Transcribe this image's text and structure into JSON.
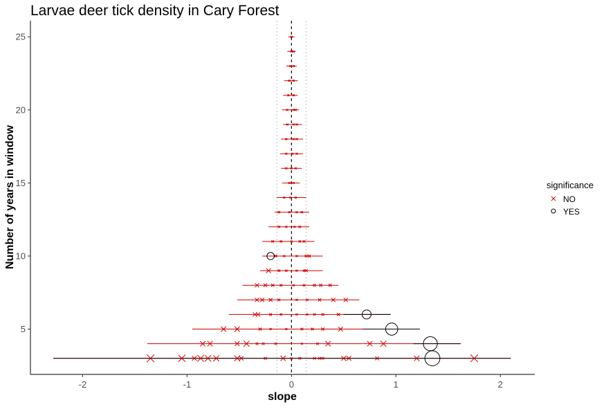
{
  "chart_data": {
    "type": "scatter",
    "title": "Larvae deer tick density in Cary Forest",
    "xlabel": "slope",
    "ylabel": "Number of years in window",
    "xlim": [
      -2.5,
      2.33
    ],
    "ylim": [
      1.9,
      26.1
    ],
    "xticks": [
      -2,
      -1,
      0,
      1,
      2
    ],
    "yticks": [
      5,
      10,
      15,
      20,
      25
    ],
    "reference_lines": {
      "zero": 0,
      "band": [
        -0.14,
        0.14
      ]
    },
    "legend": {
      "title": "significance",
      "position": "right",
      "entries": [
        "NO",
        "YES"
      ]
    },
    "colors": {
      "NO": "#cc0000",
      "YES": "#000000"
    },
    "points": [
      {
        "n": 3,
        "slope": -1.35,
        "lo": -2.28,
        "hi": 2.1,
        "r2": 0.55,
        "sig": "NO"
      },
      {
        "n": 3,
        "slope": -1.05,
        "lo": -2.28,
        "hi": 2.1,
        "r2": 0.5,
        "sig": "NO"
      },
      {
        "n": 3,
        "slope": -0.93,
        "lo": -2.28,
        "hi": 2.1,
        "r2": 0.3,
        "sig": "NO"
      },
      {
        "n": 3,
        "slope": -0.87,
        "lo": -2.28,
        "hi": 2.1,
        "r2": 0.45,
        "sig": "NO"
      },
      {
        "n": 3,
        "slope": -0.8,
        "lo": -2.28,
        "hi": 2.1,
        "r2": 0.45,
        "sig": "NO"
      },
      {
        "n": 3,
        "slope": -0.72,
        "lo": -2.28,
        "hi": 2.1,
        "r2": 0.4,
        "sig": "NO"
      },
      {
        "n": 3,
        "slope": -0.52,
        "lo": -2.28,
        "hi": 2.1,
        "r2": 0.4,
        "sig": "NO"
      },
      {
        "n": 3,
        "slope": -0.48,
        "lo": -2.28,
        "hi": 2.1,
        "r2": 0.25,
        "sig": "NO"
      },
      {
        "n": 3,
        "slope": -0.25,
        "lo": -2.28,
        "hi": 2.1,
        "r2": 0.12,
        "sig": "NO"
      },
      {
        "n": 3,
        "slope": -0.08,
        "lo": -2.28,
        "hi": 2.1,
        "r2": 0.35,
        "sig": "NO"
      },
      {
        "n": 3,
        "slope": 0.0,
        "lo": -2.28,
        "hi": 2.1,
        "r2": 0.05,
        "sig": "NO"
      },
      {
        "n": 3,
        "slope": 0.08,
        "lo": -2.28,
        "hi": 2.1,
        "r2": 0.1,
        "sig": "NO"
      },
      {
        "n": 3,
        "slope": 0.22,
        "lo": -2.28,
        "hi": 2.1,
        "r2": 0.1,
        "sig": "NO"
      },
      {
        "n": 3,
        "slope": 0.27,
        "lo": -2.28,
        "hi": 2.1,
        "r2": 0.1,
        "sig": "NO"
      },
      {
        "n": 3,
        "slope": 0.3,
        "lo": -2.28,
        "hi": 2.1,
        "r2": 0.1,
        "sig": "NO"
      },
      {
        "n": 3,
        "slope": 0.5,
        "lo": -2.28,
        "hi": 2.1,
        "r2": 0.3,
        "sig": "NO"
      },
      {
        "n": 3,
        "slope": 0.55,
        "lo": -2.28,
        "hi": 2.1,
        "r2": 0.3,
        "sig": "NO"
      },
      {
        "n": 3,
        "slope": 0.82,
        "lo": -2.28,
        "hi": 2.1,
        "r2": 0.2,
        "sig": "NO"
      },
      {
        "n": 3,
        "slope": 1.2,
        "lo": -2.28,
        "hi": 2.1,
        "r2": 0.35,
        "sig": "NO"
      },
      {
        "n": 3,
        "slope": 1.35,
        "lo": -2.28,
        "hi": 2.1,
        "r2": 0.92,
        "sig": "YES"
      },
      {
        "n": 3,
        "slope": 1.75,
        "lo": -2.28,
        "hi": 2.1,
        "r2": 0.55,
        "sig": "NO"
      },
      {
        "n": 4,
        "slope": -0.85,
        "lo": -1.38,
        "hi": 1.62,
        "r2": 0.35,
        "sig": "NO"
      },
      {
        "n": 4,
        "slope": -0.78,
        "lo": -1.38,
        "hi": 1.62,
        "r2": 0.35,
        "sig": "NO"
      },
      {
        "n": 4,
        "slope": -0.52,
        "lo": -1.38,
        "hi": 1.62,
        "r2": 0.3,
        "sig": "NO"
      },
      {
        "n": 4,
        "slope": -0.43,
        "lo": -1.38,
        "hi": 1.62,
        "r2": 0.4,
        "sig": "NO"
      },
      {
        "n": 4,
        "slope": -0.33,
        "lo": -1.38,
        "hi": 1.62,
        "r2": 0.1,
        "sig": "NO"
      },
      {
        "n": 4,
        "slope": -0.27,
        "lo": -1.38,
        "hi": 1.62,
        "r2": 0.1,
        "sig": "NO"
      },
      {
        "n": 4,
        "slope": -0.15,
        "lo": -1.38,
        "hi": 1.62,
        "r2": 0.08,
        "sig": "NO"
      },
      {
        "n": 4,
        "slope": 0.1,
        "lo": -1.38,
        "hi": 1.62,
        "r2": 0.05,
        "sig": "NO"
      },
      {
        "n": 4,
        "slope": 0.25,
        "lo": -1.38,
        "hi": 1.62,
        "r2": 0.1,
        "sig": "NO"
      },
      {
        "n": 4,
        "slope": 0.35,
        "lo": -1.38,
        "hi": 1.62,
        "r2": 0.35,
        "sig": "NO"
      },
      {
        "n": 4,
        "slope": 0.75,
        "lo": -1.38,
        "hi": 1.62,
        "r2": 0.35,
        "sig": "NO"
      },
      {
        "n": 4,
        "slope": 0.88,
        "lo": -1.38,
        "hi": 1.62,
        "r2": 0.4,
        "sig": "NO"
      },
      {
        "n": 4,
        "slope": 1.33,
        "lo": 1.17,
        "hi": 1.62,
        "r2": 0.85,
        "sig": "YES"
      },
      {
        "n": 5,
        "slope": -0.65,
        "lo": -0.95,
        "hi": 1.23,
        "r2": 0.35,
        "sig": "NO"
      },
      {
        "n": 5,
        "slope": -0.52,
        "lo": -0.95,
        "hi": 1.23,
        "r2": 0.35,
        "sig": "NO"
      },
      {
        "n": 5,
        "slope": -0.3,
        "lo": -0.95,
        "hi": 1.23,
        "r2": 0.15,
        "sig": "NO"
      },
      {
        "n": 5,
        "slope": -0.2,
        "lo": -0.95,
        "hi": 1.23,
        "r2": 0.05,
        "sig": "NO"
      },
      {
        "n": 5,
        "slope": -0.05,
        "lo": -0.95,
        "hi": 1.23,
        "r2": 0.05,
        "sig": "NO"
      },
      {
        "n": 5,
        "slope": 0.1,
        "lo": -0.95,
        "hi": 1.23,
        "r2": 0.1,
        "sig": "NO"
      },
      {
        "n": 5,
        "slope": 0.2,
        "lo": -0.95,
        "hi": 1.23,
        "r2": 0.1,
        "sig": "NO"
      },
      {
        "n": 5,
        "slope": 0.3,
        "lo": -0.95,
        "hi": 1.23,
        "r2": 0.15,
        "sig": "NO"
      },
      {
        "n": 5,
        "slope": 0.47,
        "lo": -0.95,
        "hi": 1.23,
        "r2": 0.3,
        "sig": "NO"
      },
      {
        "n": 5,
        "slope": 0.96,
        "lo": 0.68,
        "hi": 1.23,
        "r2": 0.72,
        "sig": "YES"
      },
      {
        "n": 6,
        "slope": -0.35,
        "lo": -0.6,
        "hi": 0.95,
        "r2": 0.25,
        "sig": "NO"
      },
      {
        "n": 6,
        "slope": -0.32,
        "lo": -0.6,
        "hi": 0.95,
        "r2": 0.25,
        "sig": "NO"
      },
      {
        "n": 6,
        "slope": -0.2,
        "lo": -0.6,
        "hi": 0.95,
        "r2": 0.1,
        "sig": "NO"
      },
      {
        "n": 6,
        "slope": -0.1,
        "lo": -0.6,
        "hi": 0.95,
        "r2": 0.08,
        "sig": "NO"
      },
      {
        "n": 6,
        "slope": 0.05,
        "lo": -0.6,
        "hi": 0.95,
        "r2": 0.05,
        "sig": "NO"
      },
      {
        "n": 6,
        "slope": 0.15,
        "lo": -0.6,
        "hi": 0.95,
        "r2": 0.05,
        "sig": "NO"
      },
      {
        "n": 6,
        "slope": 0.22,
        "lo": -0.6,
        "hi": 0.95,
        "r2": 0.08,
        "sig": "NO"
      },
      {
        "n": 6,
        "slope": 0.3,
        "lo": -0.6,
        "hi": 0.95,
        "r2": 0.1,
        "sig": "NO"
      },
      {
        "n": 6,
        "slope": 0.45,
        "lo": -0.6,
        "hi": 0.95,
        "r2": 0.15,
        "sig": "NO"
      },
      {
        "n": 6,
        "slope": 0.72,
        "lo": 0.5,
        "hi": 0.95,
        "r2": 0.5,
        "sig": "YES"
      },
      {
        "n": 7,
        "slope": -0.33,
        "lo": -0.52,
        "hi": 0.65,
        "r2": 0.25,
        "sig": "NO"
      },
      {
        "n": 7,
        "slope": -0.28,
        "lo": -0.52,
        "hi": 0.65,
        "r2": 0.25,
        "sig": "NO"
      },
      {
        "n": 7,
        "slope": -0.2,
        "lo": -0.52,
        "hi": 0.65,
        "r2": 0.2,
        "sig": "NO"
      },
      {
        "n": 7,
        "slope": -0.12,
        "lo": -0.52,
        "hi": 0.65,
        "r2": 0.1,
        "sig": "NO"
      },
      {
        "n": 7,
        "slope": 0.05,
        "lo": -0.52,
        "hi": 0.65,
        "r2": 0.05,
        "sig": "NO"
      },
      {
        "n": 7,
        "slope": 0.15,
        "lo": -0.52,
        "hi": 0.65,
        "r2": 0.08,
        "sig": "NO"
      },
      {
        "n": 7,
        "slope": 0.27,
        "lo": -0.52,
        "hi": 0.65,
        "r2": 0.15,
        "sig": "NO"
      },
      {
        "n": 7,
        "slope": 0.4,
        "lo": -0.52,
        "hi": 0.65,
        "r2": 0.25,
        "sig": "NO"
      },
      {
        "n": 7,
        "slope": 0.52,
        "lo": -0.52,
        "hi": 0.65,
        "r2": 0.25,
        "sig": "NO"
      },
      {
        "n": 8,
        "slope": -0.33,
        "lo": -0.47,
        "hi": 0.45,
        "r2": 0.25,
        "sig": "NO"
      },
      {
        "n": 8,
        "slope": -0.25,
        "lo": -0.47,
        "hi": 0.45,
        "r2": 0.2,
        "sig": "NO"
      },
      {
        "n": 8,
        "slope": -0.18,
        "lo": -0.47,
        "hi": 0.45,
        "r2": 0.15,
        "sig": "NO"
      },
      {
        "n": 8,
        "slope": -0.1,
        "lo": -0.47,
        "hi": 0.45,
        "r2": 0.1,
        "sig": "NO"
      },
      {
        "n": 8,
        "slope": 0.02,
        "lo": -0.47,
        "hi": 0.45,
        "r2": 0.05,
        "sig": "NO"
      },
      {
        "n": 8,
        "slope": 0.12,
        "lo": -0.47,
        "hi": 0.45,
        "r2": 0.08,
        "sig": "NO"
      },
      {
        "n": 8,
        "slope": 0.22,
        "lo": -0.47,
        "hi": 0.45,
        "r2": 0.12,
        "sig": "NO"
      },
      {
        "n": 8,
        "slope": 0.28,
        "lo": -0.47,
        "hi": 0.45,
        "r2": 0.15,
        "sig": "NO"
      },
      {
        "n": 8,
        "slope": 0.37,
        "lo": -0.47,
        "hi": 0.45,
        "r2": 0.15,
        "sig": "NO"
      },
      {
        "n": 9,
        "slope": -0.22,
        "lo": -0.3,
        "hi": 0.3,
        "r2": 0.3,
        "sig": "NO"
      },
      {
        "n": 9,
        "slope": -0.12,
        "lo": -0.3,
        "hi": 0.3,
        "r2": 0.1,
        "sig": "NO"
      },
      {
        "n": 9,
        "slope": -0.05,
        "lo": -0.3,
        "hi": 0.3,
        "r2": 0.08,
        "sig": "NO"
      },
      {
        "n": 9,
        "slope": 0.05,
        "lo": -0.3,
        "hi": 0.3,
        "r2": 0.05,
        "sig": "NO"
      },
      {
        "n": 9,
        "slope": 0.12,
        "lo": -0.3,
        "hi": 0.3,
        "r2": 0.08,
        "sig": "NO"
      },
      {
        "n": 9,
        "slope": 0.14,
        "lo": -0.3,
        "hi": 0.3,
        "r2": 0.15,
        "sig": "NO"
      },
      {
        "n": 10,
        "slope": -0.2,
        "lo": -0.28,
        "hi": -0.12,
        "r2": 0.38,
        "sig": "YES"
      },
      {
        "n": 10,
        "slope": -0.15,
        "lo": -0.28,
        "hi": 0.3,
        "r2": 0.1,
        "sig": "NO"
      },
      {
        "n": 10,
        "slope": -0.07,
        "lo": -0.28,
        "hi": 0.3,
        "r2": 0.05,
        "sig": "NO"
      },
      {
        "n": 10,
        "slope": 0.05,
        "lo": -0.28,
        "hi": 0.3,
        "r2": 0.05,
        "sig": "NO"
      },
      {
        "n": 10,
        "slope": 0.14,
        "lo": -0.28,
        "hi": 0.3,
        "r2": 0.1,
        "sig": "NO"
      },
      {
        "n": 10,
        "slope": 0.17,
        "lo": -0.28,
        "hi": 0.3,
        "r2": 0.15,
        "sig": "NO"
      },
      {
        "n": 11,
        "slope": -0.18,
        "lo": -0.28,
        "hi": 0.22,
        "r2": 0.1,
        "sig": "NO"
      },
      {
        "n": 11,
        "slope": -0.1,
        "lo": -0.28,
        "hi": 0.22,
        "r2": 0.08,
        "sig": "NO"
      },
      {
        "n": 11,
        "slope": 0.0,
        "lo": -0.28,
        "hi": 0.22,
        "r2": 0.05,
        "sig": "NO"
      },
      {
        "n": 11,
        "slope": 0.08,
        "lo": -0.28,
        "hi": 0.22,
        "r2": 0.08,
        "sig": "NO"
      },
      {
        "n": 11,
        "slope": 0.12,
        "lo": -0.28,
        "hi": 0.22,
        "r2": 0.1,
        "sig": "NO"
      },
      {
        "n": 12,
        "slope": -0.12,
        "lo": -0.22,
        "hi": 0.17,
        "r2": 0.08,
        "sig": "NO"
      },
      {
        "n": 12,
        "slope": -0.05,
        "lo": -0.22,
        "hi": 0.17,
        "r2": 0.05,
        "sig": "NO"
      },
      {
        "n": 12,
        "slope": 0.03,
        "lo": -0.22,
        "hi": 0.17,
        "r2": 0.05,
        "sig": "NO"
      },
      {
        "n": 12,
        "slope": 0.08,
        "lo": -0.22,
        "hi": 0.17,
        "r2": 0.08,
        "sig": "NO"
      },
      {
        "n": 13,
        "slope": -0.12,
        "lo": -0.16,
        "hi": 0.17,
        "r2": 0.08,
        "sig": "NO"
      },
      {
        "n": 13,
        "slope": -0.02,
        "lo": -0.16,
        "hi": 0.17,
        "r2": 0.05,
        "sig": "NO"
      },
      {
        "n": 13,
        "slope": 0.05,
        "lo": -0.16,
        "hi": 0.17,
        "r2": 0.05,
        "sig": "NO"
      },
      {
        "n": 13,
        "slope": 0.1,
        "lo": -0.16,
        "hi": 0.17,
        "r2": 0.08,
        "sig": "NO"
      },
      {
        "n": 14,
        "slope": -0.07,
        "lo": -0.14,
        "hi": 0.14,
        "r2": 0.05,
        "sig": "NO"
      },
      {
        "n": 14,
        "slope": -0.01,
        "lo": -0.14,
        "hi": 0.14,
        "r2": 0.05,
        "sig": "NO"
      },
      {
        "n": 14,
        "slope": 0.04,
        "lo": -0.14,
        "hi": 0.14,
        "r2": 0.05,
        "sig": "NO"
      },
      {
        "n": 15,
        "slope": -0.02,
        "lo": -0.09,
        "hi": 0.08,
        "r2": 0.05,
        "sig": "NO"
      },
      {
        "n": 15,
        "slope": 0.02,
        "lo": -0.09,
        "hi": 0.08,
        "r2": 0.05,
        "sig": "NO"
      },
      {
        "n": 16,
        "slope": -0.05,
        "lo": -0.1,
        "hi": 0.1,
        "r2": 0.05,
        "sig": "NO"
      },
      {
        "n": 16,
        "slope": 0.0,
        "lo": -0.1,
        "hi": 0.1,
        "r2": 0.05,
        "sig": "NO"
      },
      {
        "n": 16,
        "slope": 0.04,
        "lo": -0.1,
        "hi": 0.1,
        "r2": 0.05,
        "sig": "NO"
      },
      {
        "n": 17,
        "slope": -0.05,
        "lo": -0.11,
        "hi": 0.11,
        "r2": 0.05,
        "sig": "NO"
      },
      {
        "n": 17,
        "slope": 0.01,
        "lo": -0.11,
        "hi": 0.11,
        "r2": 0.05,
        "sig": "NO"
      },
      {
        "n": 17,
        "slope": 0.05,
        "lo": -0.11,
        "hi": 0.11,
        "r2": 0.05,
        "sig": "NO"
      },
      {
        "n": 18,
        "slope": -0.05,
        "lo": -0.1,
        "hi": 0.11,
        "r2": 0.05,
        "sig": "NO"
      },
      {
        "n": 18,
        "slope": 0.02,
        "lo": -0.1,
        "hi": 0.11,
        "r2": 0.05,
        "sig": "NO"
      },
      {
        "n": 18,
        "slope": 0.05,
        "lo": -0.1,
        "hi": 0.11,
        "r2": 0.05,
        "sig": "NO"
      },
      {
        "n": 19,
        "slope": -0.04,
        "lo": -0.08,
        "hi": 0.1,
        "r2": 0.05,
        "sig": "NO"
      },
      {
        "n": 19,
        "slope": 0.02,
        "lo": -0.08,
        "hi": 0.1,
        "r2": 0.05,
        "sig": "NO"
      },
      {
        "n": 19,
        "slope": 0.05,
        "lo": -0.08,
        "hi": 0.1,
        "r2": 0.05,
        "sig": "NO"
      },
      {
        "n": 20,
        "slope": -0.04,
        "lo": -0.09,
        "hi": 0.07,
        "r2": 0.05,
        "sig": "NO"
      },
      {
        "n": 20,
        "slope": 0.02,
        "lo": -0.09,
        "hi": 0.07,
        "r2": 0.05,
        "sig": "NO"
      },
      {
        "n": 20,
        "slope": 0.04,
        "lo": -0.09,
        "hi": 0.07,
        "r2": 0.05,
        "sig": "NO"
      },
      {
        "n": 21,
        "slope": -0.03,
        "lo": -0.08,
        "hi": 0.06,
        "r2": 0.05,
        "sig": "NO"
      },
      {
        "n": 21,
        "slope": 0.02,
        "lo": -0.08,
        "hi": 0.06,
        "r2": 0.05,
        "sig": "NO"
      },
      {
        "n": 22,
        "slope": -0.02,
        "lo": -0.07,
        "hi": 0.06,
        "r2": 0.05,
        "sig": "NO"
      },
      {
        "n": 22,
        "slope": 0.02,
        "lo": -0.07,
        "hi": 0.06,
        "r2": 0.05,
        "sig": "NO"
      },
      {
        "n": 23,
        "slope": -0.01,
        "lo": -0.05,
        "hi": 0.05,
        "r2": 0.05,
        "sig": "NO"
      },
      {
        "n": 23,
        "slope": 0.02,
        "lo": -0.05,
        "hi": 0.05,
        "r2": 0.05,
        "sig": "NO"
      },
      {
        "n": 24,
        "slope": 0.0,
        "lo": -0.04,
        "hi": 0.04,
        "r2": 0.05,
        "sig": "NO"
      },
      {
        "n": 24,
        "slope": 0.02,
        "lo": -0.04,
        "hi": 0.04,
        "r2": 0.05,
        "sig": "NO"
      },
      {
        "n": 25,
        "slope": 0.0,
        "lo": -0.03,
        "hi": 0.03,
        "r2": 0.05,
        "sig": "NO"
      }
    ]
  }
}
